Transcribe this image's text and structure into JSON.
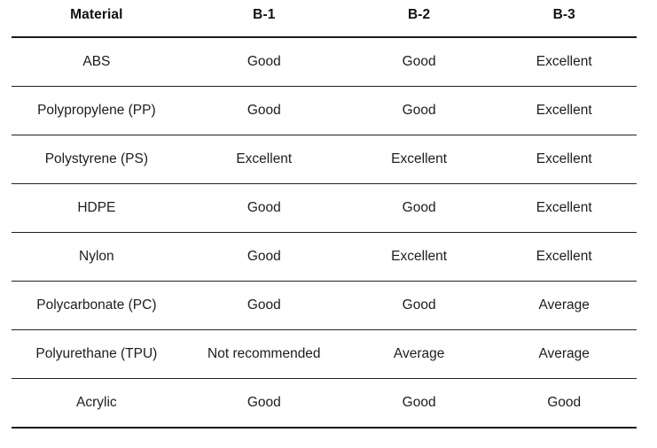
{
  "table": {
    "columns": [
      "Material",
      "B-1",
      "B-2",
      "B-3"
    ],
    "rows": [
      [
        "ABS",
        "Good",
        "Good",
        "Excellent"
      ],
      [
        "Polypropylene (PP)",
        "Good",
        "Good",
        "Excellent"
      ],
      [
        "Polystyrene (PS)",
        "Excellent",
        "Excellent",
        "Excellent"
      ],
      [
        "HDPE",
        "Good",
        "Good",
        "Excellent"
      ],
      [
        "Nylon",
        "Good",
        "Excellent",
        "Excellent"
      ],
      [
        "Polycarbonate (PC)",
        "Good",
        "Good",
        "Average"
      ],
      [
        "Polyurethane (TPU)",
        "Not recommended",
        "Average",
        "Average"
      ],
      [
        "Acrylic",
        "Good",
        "Good",
        "Good"
      ]
    ],
    "colors": {
      "text": "#1d1d1d",
      "header_text": "#111111",
      "border_heavy": "#1a1a1a",
      "border_light": "#222222",
      "background": "#ffffff"
    }
  }
}
